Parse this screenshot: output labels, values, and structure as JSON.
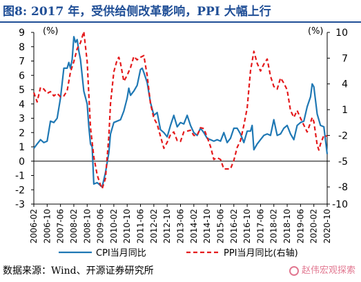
{
  "title": "图8:  2017 年，受供给侧改革影响，PPI 大幅上行",
  "source": "数据来源：Wind、开源证券研究所",
  "watermark": "赵伟宏观探索",
  "colors": {
    "cpi": "#1f78b4",
    "ppi": "#e41a1c",
    "title": "#1f4e96"
  },
  "chart_data": {
    "type": "line",
    "title": "图8:  2017 年，受供给侧改革影响，PPI 大幅上行",
    "left_unit": "(%)",
    "right_unit": "(%)",
    "left_axis": {
      "ylim": [
        -3,
        9
      ],
      "ticks": [
        -3,
        -2,
        -1,
        0,
        1,
        2,
        3,
        4,
        5,
        6,
        7,
        8,
        9
      ]
    },
    "right_axis": {
      "ylim": [
        -10,
        10
      ],
      "ticks": [
        -10,
        -8,
        -5,
        -2,
        1,
        4,
        7,
        10
      ]
    },
    "x_range": [
      "2006-02",
      "2020-10"
    ],
    "x_tick_labels": [
      "2006-02",
      "2006-10",
      "2007-06",
      "2008-02",
      "2008-10",
      "2009-06",
      "2010-02",
      "2010-10",
      "2011-06",
      "2012-02",
      "2012-10",
      "2013-06",
      "2014-02",
      "2014-10",
      "2015-06",
      "2016-02",
      "2016-10",
      "2017-06",
      "2018-02",
      "2018-10",
      "2019-06",
      "2020-02",
      "2020-10"
    ],
    "grid": false,
    "legend": "bottom",
    "series": [
      {
        "name": "CPI当月同比",
        "axis": "left",
        "style": "solid",
        "points": [
          [
            "2006-02",
            0.9
          ],
          [
            "2006-04",
            1.2
          ],
          [
            "2006-06",
            1.5
          ],
          [
            "2006-08",
            1.3
          ],
          [
            "2006-10",
            1.4
          ],
          [
            "2006-12",
            2.8
          ],
          [
            "2007-02",
            2.7
          ],
          [
            "2007-04",
            3.0
          ],
          [
            "2007-06",
            4.4
          ],
          [
            "2007-08",
            6.5
          ],
          [
            "2007-10",
            6.5
          ],
          [
            "2007-11",
            6.9
          ],
          [
            "2007-12",
            6.5
          ],
          [
            "2008-01",
            7.1
          ],
          [
            "2008-02",
            8.7
          ],
          [
            "2008-03",
            8.3
          ],
          [
            "2008-04",
            8.5
          ],
          [
            "2008-05",
            7.7
          ],
          [
            "2008-06",
            7.1
          ],
          [
            "2008-08",
            4.9
          ],
          [
            "2008-10",
            4.0
          ],
          [
            "2008-11",
            2.4
          ],
          [
            "2008-12",
            1.2
          ],
          [
            "2009-01",
            1.0
          ],
          [
            "2009-02",
            -1.6
          ],
          [
            "2009-04",
            -1.5
          ],
          [
            "2009-06",
            -1.7
          ],
          [
            "2009-07",
            -1.8
          ],
          [
            "2009-09",
            -0.8
          ],
          [
            "2009-11",
            0.6
          ],
          [
            "2009-12",
            1.9
          ],
          [
            "2010-02",
            2.7
          ],
          [
            "2010-04",
            2.8
          ],
          [
            "2010-06",
            2.9
          ],
          [
            "2010-08",
            3.5
          ],
          [
            "2010-10",
            4.4
          ],
          [
            "2010-11",
            5.1
          ],
          [
            "2010-12",
            4.6
          ],
          [
            "2011-02",
            4.9
          ],
          [
            "2011-04",
            5.3
          ],
          [
            "2011-06",
            6.4
          ],
          [
            "2011-07",
            6.5
          ],
          [
            "2011-08",
            6.2
          ],
          [
            "2011-10",
            5.5
          ],
          [
            "2011-12",
            4.1
          ],
          [
            "2012-02",
            3.2
          ],
          [
            "2012-04",
            3.4
          ],
          [
            "2012-06",
            2.2
          ],
          [
            "2012-08",
            2.0
          ],
          [
            "2012-10",
            1.7
          ],
          [
            "2012-12",
            2.5
          ],
          [
            "2013-02",
            3.2
          ],
          [
            "2013-04",
            2.4
          ],
          [
            "2013-06",
            2.7
          ],
          [
            "2013-08",
            2.6
          ],
          [
            "2013-10",
            3.2
          ],
          [
            "2013-12",
            2.5
          ],
          [
            "2014-02",
            2.0
          ],
          [
            "2014-04",
            1.8
          ],
          [
            "2014-06",
            2.3
          ],
          [
            "2014-08",
            2.0
          ],
          [
            "2014-10",
            1.6
          ],
          [
            "2014-12",
            1.5
          ],
          [
            "2015-02",
            1.4
          ],
          [
            "2015-04",
            1.5
          ],
          [
            "2015-06",
            1.4
          ],
          [
            "2015-08",
            2.0
          ],
          [
            "2015-10",
            1.3
          ],
          [
            "2015-12",
            1.6
          ],
          [
            "2016-02",
            2.3
          ],
          [
            "2016-04",
            2.3
          ],
          [
            "2016-06",
            1.9
          ],
          [
            "2016-08",
            1.3
          ],
          [
            "2016-10",
            2.1
          ],
          [
            "2016-12",
            2.1
          ],
          [
            "2017-01",
            2.5
          ],
          [
            "2017-02",
            0.8
          ],
          [
            "2017-04",
            1.2
          ],
          [
            "2017-06",
            1.5
          ],
          [
            "2017-08",
            1.8
          ],
          [
            "2017-10",
            1.9
          ],
          [
            "2017-12",
            1.8
          ],
          [
            "2018-02",
            2.9
          ],
          [
            "2018-04",
            1.8
          ],
          [
            "2018-06",
            1.9
          ],
          [
            "2018-08",
            2.3
          ],
          [
            "2018-10",
            2.5
          ],
          [
            "2018-12",
            1.9
          ],
          [
            "2019-02",
            1.5
          ],
          [
            "2019-04",
            2.5
          ],
          [
            "2019-06",
            2.7
          ],
          [
            "2019-08",
            2.8
          ],
          [
            "2019-10",
            3.8
          ],
          [
            "2019-12",
            4.5
          ],
          [
            "2020-01",
            5.4
          ],
          [
            "2020-02",
            5.2
          ],
          [
            "2020-04",
            3.3
          ],
          [
            "2020-06",
            2.5
          ],
          [
            "2020-08",
            2.4
          ],
          [
            "2020-10",
            0.5
          ]
        ]
      },
      {
        "name": "PPI当月同比(右轴)",
        "axis": "right",
        "style": "dashed",
        "points": [
          [
            "2006-02",
            3.0
          ],
          [
            "2006-04",
            1.9
          ],
          [
            "2006-06",
            3.6
          ],
          [
            "2006-08",
            3.4
          ],
          [
            "2006-10",
            2.9
          ],
          [
            "2006-12",
            3.1
          ],
          [
            "2007-02",
            2.6
          ],
          [
            "2007-04",
            2.9
          ],
          [
            "2007-06",
            2.5
          ],
          [
            "2007-08",
            2.6
          ],
          [
            "2007-10",
            3.2
          ],
          [
            "2007-12",
            5.4
          ],
          [
            "2008-02",
            6.6
          ],
          [
            "2008-04",
            8.1
          ],
          [
            "2008-06",
            8.8
          ],
          [
            "2008-08",
            10.1
          ],
          [
            "2008-10",
            6.6
          ],
          [
            "2008-12",
            -1.1
          ],
          [
            "2009-02",
            -4.5
          ],
          [
            "2009-04",
            -6.6
          ],
          [
            "2009-06",
            -7.8
          ],
          [
            "2009-07",
            -8.2
          ],
          [
            "2009-09",
            -7.0
          ],
          [
            "2009-11",
            -2.1
          ],
          [
            "2009-12",
            1.7
          ],
          [
            "2010-02",
            5.4
          ],
          [
            "2010-04",
            6.8
          ],
          [
            "2010-05",
            7.1
          ],
          [
            "2010-06",
            6.4
          ],
          [
            "2010-08",
            4.3
          ],
          [
            "2010-10",
            5.0
          ],
          [
            "2010-12",
            5.9
          ],
          [
            "2011-02",
            7.2
          ],
          [
            "2011-04",
            6.8
          ],
          [
            "2011-06",
            7.1
          ],
          [
            "2011-08",
            7.3
          ],
          [
            "2011-10",
            5.0
          ],
          [
            "2011-12",
            1.7
          ],
          [
            "2012-02",
            0.0
          ],
          [
            "2012-04",
            -0.7
          ],
          [
            "2012-06",
            -2.1
          ],
          [
            "2012-08",
            -3.5
          ],
          [
            "2012-10",
            -2.8
          ],
          [
            "2012-12",
            -1.9
          ],
          [
            "2013-02",
            -1.6
          ],
          [
            "2013-04",
            -2.6
          ],
          [
            "2013-06",
            -2.7
          ],
          [
            "2013-08",
            -1.6
          ],
          [
            "2013-10",
            -1.5
          ],
          [
            "2013-12",
            -1.4
          ],
          [
            "2014-02",
            -2.0
          ],
          [
            "2014-04",
            -2.0
          ],
          [
            "2014-06",
            -1.1
          ],
          [
            "2014-08",
            -1.2
          ],
          [
            "2014-10",
            -2.2
          ],
          [
            "2014-12",
            -3.3
          ],
          [
            "2015-02",
            -4.8
          ],
          [
            "2015-04",
            -4.6
          ],
          [
            "2015-06",
            -4.8
          ],
          [
            "2015-08",
            -5.9
          ],
          [
            "2015-10",
            -5.9
          ],
          [
            "2015-12",
            -5.9
          ],
          [
            "2016-02",
            -4.9
          ],
          [
            "2016-04",
            -3.4
          ],
          [
            "2016-06",
            -2.6
          ],
          [
            "2016-08",
            -0.8
          ],
          [
            "2016-10",
            1.2
          ],
          [
            "2016-12",
            5.5
          ],
          [
            "2017-02",
            7.8
          ],
          [
            "2017-04",
            6.4
          ],
          [
            "2017-06",
            5.5
          ],
          [
            "2017-08",
            6.3
          ],
          [
            "2017-10",
            6.9
          ],
          [
            "2017-12",
            4.9
          ],
          [
            "2018-02",
            3.7
          ],
          [
            "2018-04",
            3.4
          ],
          [
            "2018-06",
            4.7
          ],
          [
            "2018-08",
            4.1
          ],
          [
            "2018-10",
            3.3
          ],
          [
            "2018-12",
            0.9
          ],
          [
            "2019-02",
            0.1
          ],
          [
            "2019-04",
            0.9
          ],
          [
            "2019-06",
            0.0
          ],
          [
            "2019-08",
            -0.8
          ],
          [
            "2019-10",
            -1.6
          ],
          [
            "2019-12",
            -0.5
          ],
          [
            "2020-01",
            0.1
          ],
          [
            "2020-02",
            -0.4
          ],
          [
            "2020-04",
            -3.1
          ],
          [
            "2020-05",
            -3.7
          ],
          [
            "2020-06",
            -3.0
          ],
          [
            "2020-08",
            -2.0
          ],
          [
            "2020-10",
            -2.1
          ]
        ]
      }
    ]
  }
}
